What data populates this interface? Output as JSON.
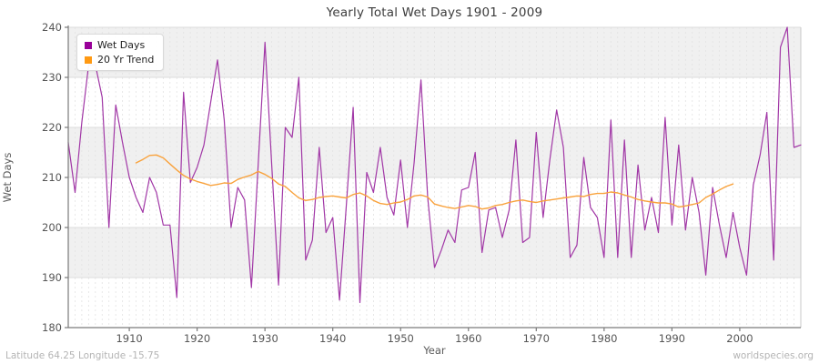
{
  "title": "Yearly Total Wet Days 1901 - 2009",
  "y_axis_label": "Wet Days",
  "x_axis_label": "Year",
  "footer": {
    "left": "Latitude 64.25 Longitude -15.75",
    "right": "worldspecies.org"
  },
  "legend": {
    "items": [
      {
        "label": "Wet Days",
        "color": "#990099"
      },
      {
        "label": "20 Yr Trend",
        "color": "#ff9912"
      }
    ]
  },
  "style": {
    "band_color": "#f0f0f0",
    "vgrid_color": "#e2e2e2",
    "hgrid_color": "#dcdcdc",
    "spine_color": "#7a7a7a",
    "right_spine_color": "#c8c8c8",
    "tick_label_color": "#555555"
  },
  "chart_data": {
    "type": "line",
    "title": "Yearly Total Wet Days 1901 - 2009",
    "xlabel": "Year",
    "ylabel": "Wet Days",
    "xlim": [
      1901,
      2009
    ],
    "ylim": [
      180,
      240
    ],
    "x_ticks": [
      1910,
      1920,
      1930,
      1940,
      1950,
      1960,
      1970,
      1980,
      1990,
      2000
    ],
    "y_ticks": [
      180,
      190,
      200,
      210,
      220,
      230,
      240
    ],
    "grid": true,
    "legend_position": "upper left",
    "series": [
      {
        "name": "Wet Days",
        "color": "#a137a6",
        "width": 1.2,
        "x_start": 1901,
        "values": [
          217,
          207,
          221,
          232.5,
          232.5,
          226,
          200,
          224.5,
          217,
          210,
          206,
          203,
          210,
          207,
          200.5,
          200.5,
          186,
          227,
          209,
          212,
          216.5,
          225,
          233.5,
          221.5,
          200,
          208,
          205.5,
          188,
          212.5,
          237,
          212.5,
          188.5,
          220,
          218,
          230,
          193.5,
          197.5,
          216,
          199,
          202,
          185.5,
          204.5,
          224,
          185,
          211,
          207,
          216,
          206,
          202.5,
          213.5,
          200,
          213,
          229.5,
          206,
          192,
          195.5,
          199.5,
          197,
          207.5,
          208,
          215,
          195,
          203.5,
          204,
          198,
          203.5,
          217.5,
          197,
          198,
          219,
          202,
          213.5,
          223.5,
          216,
          194,
          196.5,
          214,
          204,
          202,
          194,
          221.5,
          194,
          217.5,
          194,
          212.5,
          199.5,
          206,
          199,
          222,
          200.5,
          216.5,
          199.5,
          210,
          203,
          190.5,
          208,
          200.5,
          194,
          203,
          196,
          190.5,
          208.5,
          214.5,
          223,
          193.5,
          236,
          240,
          216,
          216.5
        ]
      },
      {
        "name": "20 Yr Trend",
        "color": "#f9a23c",
        "width": 1.4,
        "x_start": 1911,
        "values": [
          212.9,
          213.6,
          214.4,
          214.5,
          213.9,
          212.7,
          211.5,
          210.4,
          209.7,
          209.2,
          208.8,
          208.4,
          208.6,
          208.9,
          208.8,
          209.6,
          210.1,
          210.5,
          211.2,
          210.6,
          209.8,
          208.7,
          208.2,
          207.0,
          205.9,
          205.4,
          205.6,
          206.0,
          206.2,
          206.3,
          206.1,
          205.9,
          206.6,
          206.9,
          206.3,
          205.4,
          204.8,
          204.6,
          204.9,
          205.1,
          205.6,
          206.3,
          206.5,
          206.1,
          204.7,
          204.3,
          204.0,
          203.8,
          204.1,
          204.4,
          204.2,
          203.7,
          203.9,
          204.4,
          204.6,
          205.0,
          205.3,
          205.5,
          205.2,
          205.0,
          205.3,
          205.5,
          205.7,
          205.9,
          206.1,
          206.3,
          206.2,
          206.6,
          206.8,
          206.8,
          207.1,
          206.9,
          206.5,
          206.1,
          205.6,
          205.3,
          205.1,
          204.9,
          204.9,
          204.7,
          204.1,
          204.3,
          204.6,
          204.9,
          206.0,
          206.7,
          207.5,
          208.2,
          208.7
        ]
      }
    ]
  }
}
